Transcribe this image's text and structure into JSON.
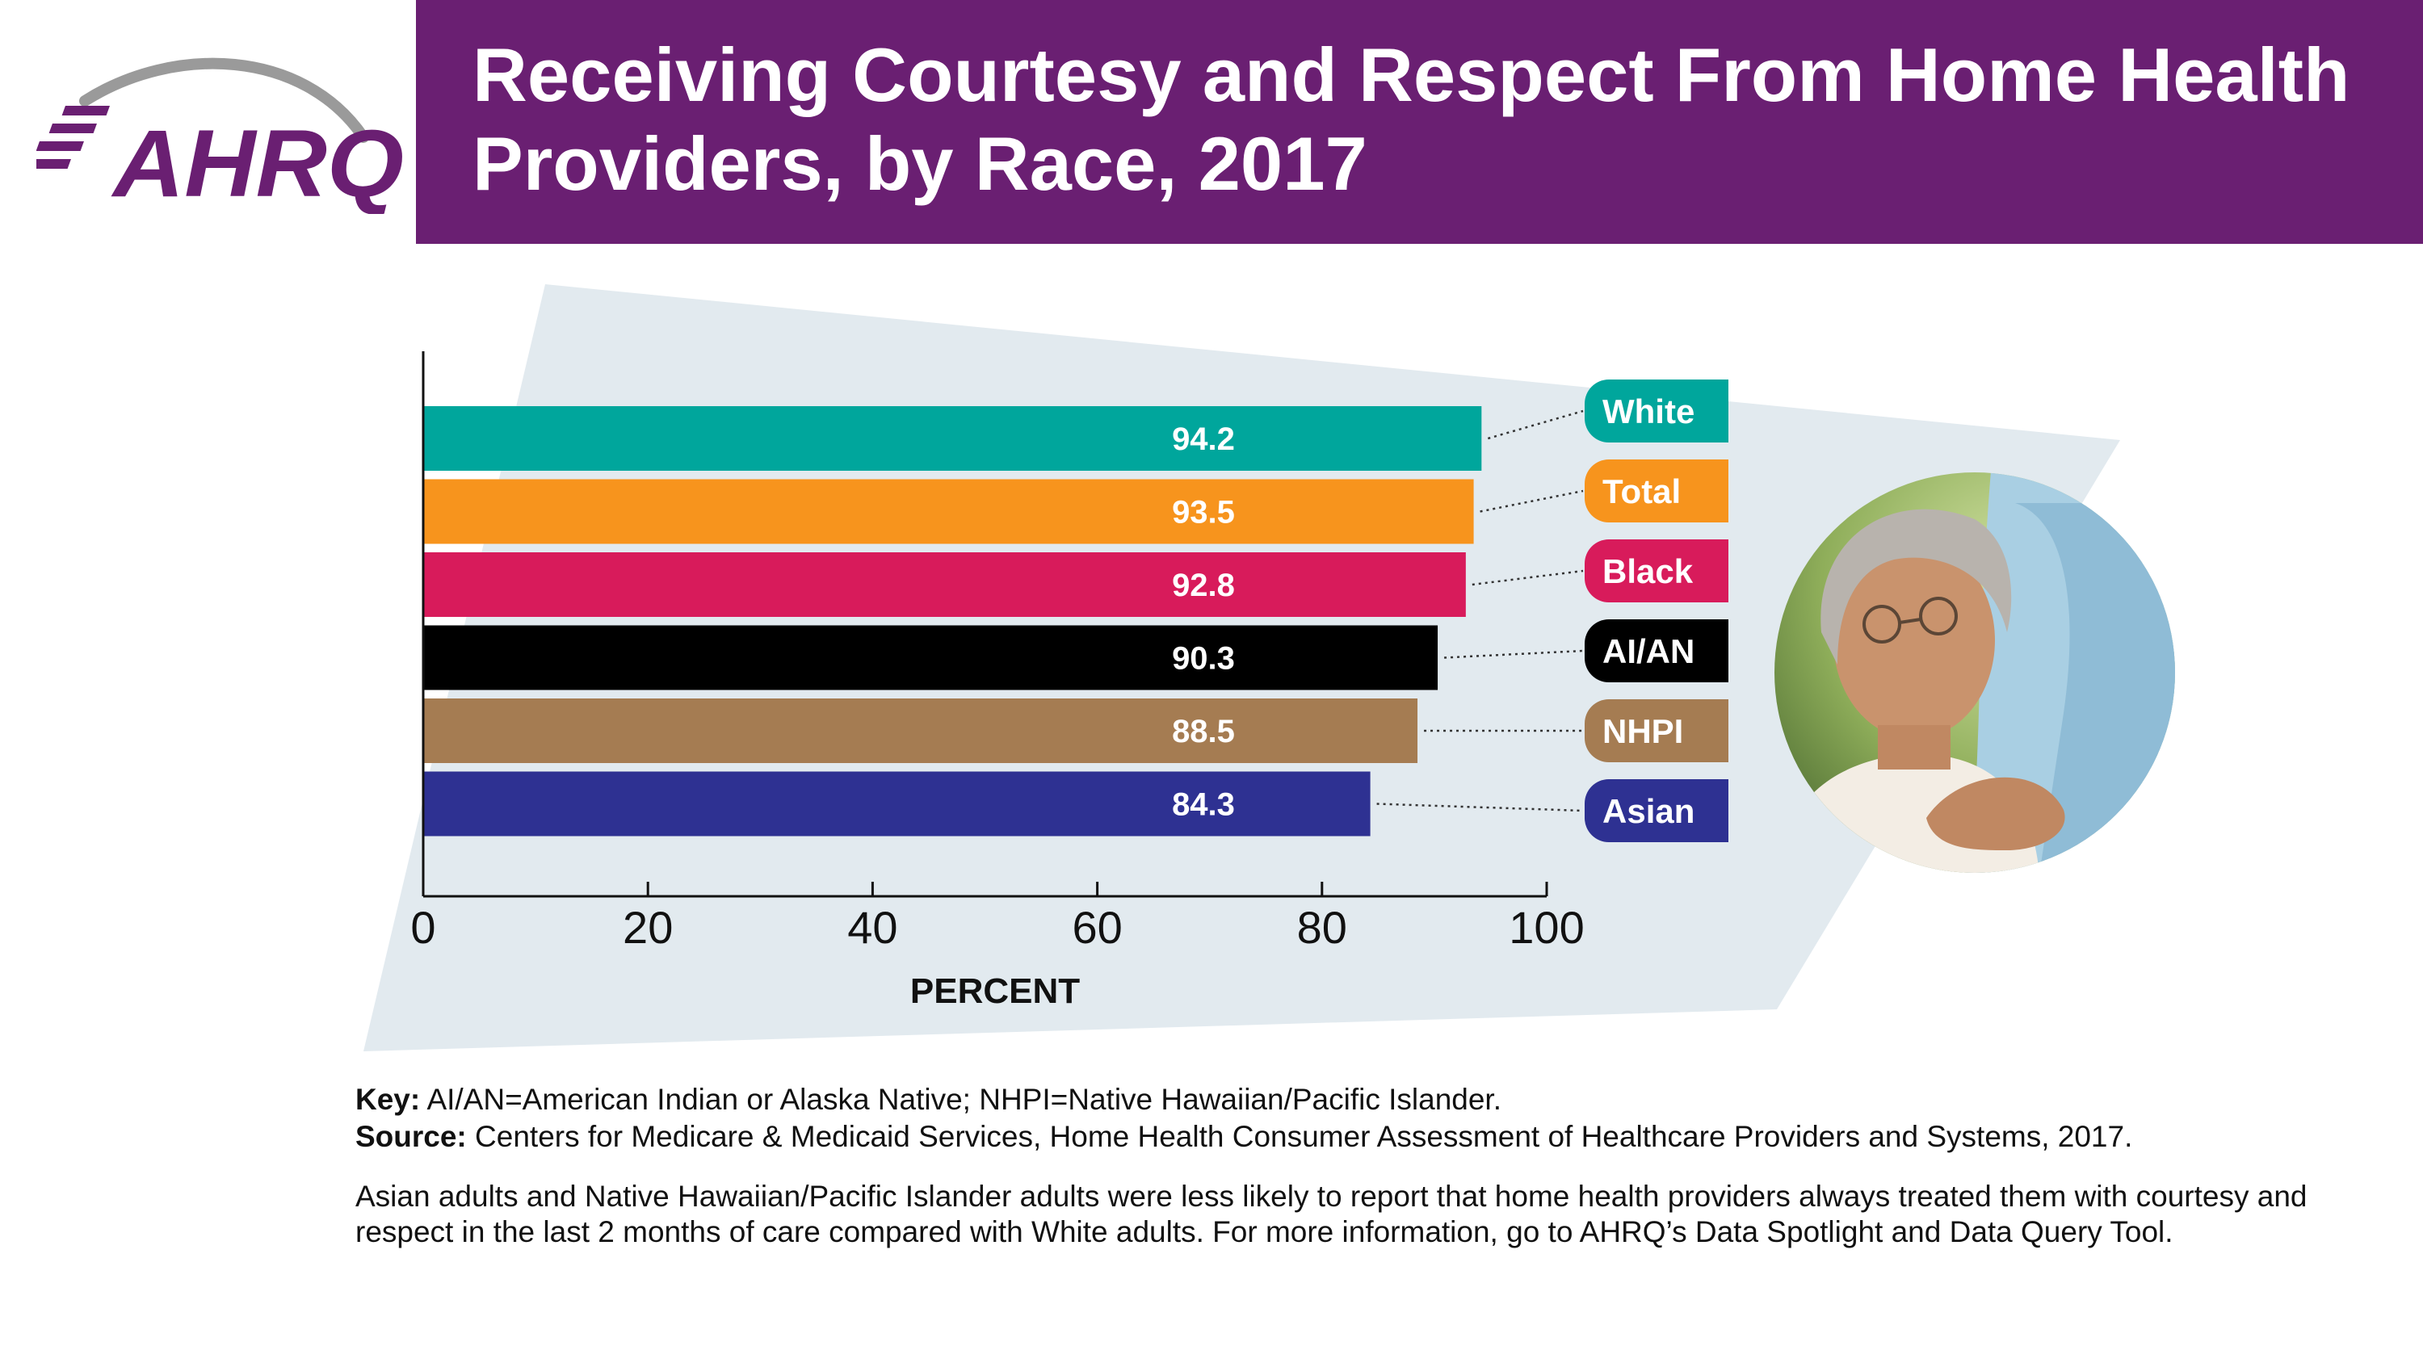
{
  "header": {
    "logo_text": "AHRQ",
    "title": "Receiving Courtesy and Respect From Home Health Providers, by Race, 2017"
  },
  "colors": {
    "header_band": "#6a1f72",
    "background_shape": "#e2eaef",
    "white": "#00a69c",
    "total": "#f7941d",
    "black": "#d81b5b",
    "aian": "#000000",
    "nhpi": "#a57c52",
    "asian": "#2e3192"
  },
  "chart_data": {
    "type": "bar",
    "orientation": "horizontal",
    "categories": [
      "White",
      "Total",
      "Black",
      "AI/AN",
      "NHPI",
      "Asian"
    ],
    "values": [
      94.2,
      93.5,
      92.8,
      90.3,
      88.5,
      84.3
    ],
    "data_labels": [
      "94.2",
      "93.5",
      "92.8",
      "90.3",
      "88.5",
      "84.3"
    ],
    "xlabel": "PERCENT",
    "ylabel": "",
    "xlim": [
      0,
      100
    ],
    "x_ticks": [
      "0",
      "20",
      "40",
      "60",
      "80",
      "100"
    ],
    "grid": false,
    "legend": "right"
  },
  "footer": {
    "key_label": "Key:",
    "key_text": " AI/AN=American Indian or Alaska Native; NHPI=Native Hawaiian/Pacific Islander.",
    "source_label": "Source:",
    "source_text": " Centers for Medicare & Medicaid Services, Home Health Consumer Assessment of Healthcare Providers and Systems, 2017.",
    "description": "Asian adults and Native Hawaiian/Pacific Islander adults were less likely to report that home health providers always treated them with courtesy and respect in the last 2 months of care compared with White adults. For more information, go to AHRQ’s Data Spotlight and Data Query Tool."
  }
}
